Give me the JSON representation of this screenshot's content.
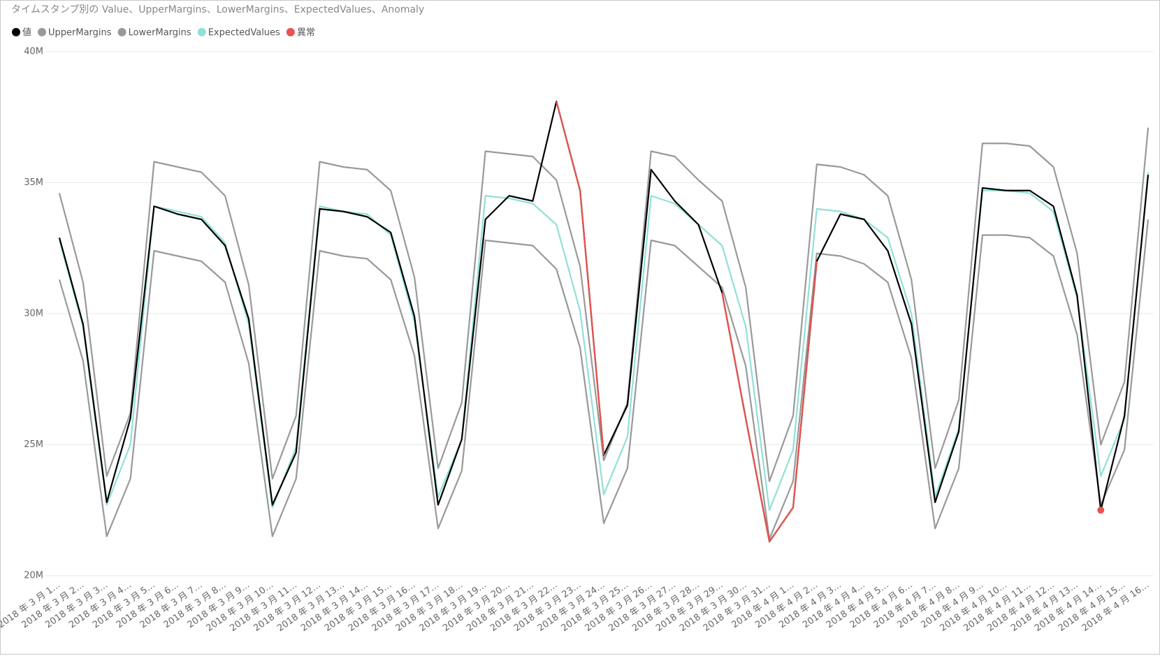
{
  "chart_data": {
    "type": "line",
    "title": "タイムスタンプ別の Value、UpperMargins、LowerMargins、ExpectedValues、Anomaly",
    "categories": [
      "2018 年 3 月 1…",
      "2018 年 3 月 2…",
      "2018 年 3 月 3…",
      "2018 年 3 月 4…",
      "2018 年 3 月 5…",
      "2018 年 3 月 6…",
      "2018 年 3 月 7…",
      "2018 年 3 月 8…",
      "2018 年 3 月 9…",
      "2018 年 3 月 10…",
      "2018 年 3 月 11…",
      "2018 年 3 月 12…",
      "2018 年 3 月 13…",
      "2018 年 3 月 14…",
      "2018 年 3 月 15…",
      "2018 年 3 月 16…",
      "2018 年 3 月 17…",
      "2018 年 3 月 18…",
      "2018 年 3 月 19…",
      "2018 年 3 月 20…",
      "2018 年 3 月 21…",
      "2018 年 3 月 22…",
      "2018 年 3 月 23…",
      "2018 年 3 月 24…",
      "2018 年 3 月 25…",
      "2018 年 3 月 26…",
      "2018 年 3 月 27…",
      "2018 年 3 月 28…",
      "2018 年 3 月 29…",
      "2018 年 3 月 30…",
      "2018 年 3 月 31…",
      "2018 年 4 月 1…",
      "2018 年 4 月 2…",
      "2018 年 4 月 3…",
      "2018 年 4 月 4…",
      "2018 年 4 月 5…",
      "2018 年 4 月 6…",
      "2018 年 4 月 7…",
      "2018 年 4 月 8…",
      "2018 年 4 月 9…",
      "2018 年 4 月 10…",
      "2018 年 4 月 11…",
      "2018 年 4 月 12…",
      "2018 年 4 月 13…",
      "2018 年 4 月 14…",
      "2018 年 4 月 15…",
      "2018 年 4 月 16…"
    ],
    "series": [
      {
        "name": "値",
        "color": "#000000",
        "values": [
          32.9,
          29.6,
          22.8,
          26.0,
          34.1,
          33.8,
          33.6,
          32.6,
          29.8,
          22.7,
          24.7,
          34.0,
          33.9,
          33.7,
          33.1,
          29.9,
          22.7,
          25.2,
          33.6,
          34.5,
          34.3,
          38.1,
          34.7,
          24.6,
          26.5,
          35.5,
          34.3,
          33.4,
          30.8,
          26.0,
          21.3,
          22.6,
          32.0,
          33.8,
          33.6,
          32.4,
          29.6,
          22.8,
          25.5,
          34.8,
          34.7,
          34.7,
          34.1,
          30.7,
          22.5,
          26.1,
          35.3
        ]
      },
      {
        "name": "UpperMargins",
        "color": "#999999",
        "values": [
          34.6,
          31.2,
          23.8,
          26.2,
          35.8,
          35.6,
          35.4,
          34.5,
          31.1,
          23.7,
          26.1,
          35.8,
          35.6,
          35.5,
          34.7,
          31.4,
          24.1,
          26.6,
          36.2,
          36.1,
          36.0,
          35.1,
          31.8,
          24.4,
          26.6,
          36.2,
          36.0,
          35.1,
          34.3,
          31.0,
          23.6,
          26.1,
          35.7,
          35.6,
          35.3,
          34.5,
          31.3,
          24.1,
          26.7,
          36.5,
          36.5,
          36.4,
          35.6,
          32.3,
          25.0,
          27.4,
          37.1
        ]
      },
      {
        "name": "LowerMargins",
        "color": "#999999",
        "values": [
          31.3,
          28.2,
          21.5,
          23.7,
          32.4,
          32.2,
          32.0,
          31.2,
          28.1,
          21.5,
          23.7,
          32.4,
          32.2,
          32.1,
          31.3,
          28.4,
          21.8,
          24.0,
          32.8,
          32.7,
          32.6,
          31.7,
          28.7,
          22.0,
          24.1,
          32.8,
          32.6,
          31.8,
          31.0,
          28.0,
          21.4,
          23.6,
          32.3,
          32.2,
          31.9,
          31.2,
          28.3,
          21.8,
          24.1,
          33.0,
          33.0,
          32.9,
          32.2,
          29.2,
          22.7,
          24.8,
          33.6
        ]
      },
      {
        "name": "ExpectedValues",
        "color": "#91e0d7",
        "values": [
          32.8,
          29.5,
          22.7,
          25.0,
          34.1,
          33.9,
          33.7,
          32.7,
          29.6,
          22.6,
          24.9,
          34.1,
          33.9,
          33.8,
          33.0,
          29.7,
          23.0,
          25.2,
          34.5,
          34.4,
          34.2,
          33.4,
          30.1,
          23.1,
          25.3,
          34.5,
          34.2,
          33.4,
          32.6,
          29.5,
          22.5,
          24.8,
          34.0,
          33.9,
          33.6,
          32.9,
          30.0,
          23.0,
          25.6,
          34.7,
          34.7,
          34.6,
          33.9,
          30.6,
          23.8,
          26.0,
          35.4
        ]
      },
      {
        "name": "異常",
        "color": "#e8534d",
        "values": [
          null,
          null,
          null,
          null,
          null,
          null,
          null,
          null,
          null,
          null,
          null,
          null,
          null,
          null,
          null,
          null,
          null,
          null,
          null,
          null,
          null,
          38.1,
          34.7,
          24.6,
          null,
          null,
          null,
          null,
          30.8,
          26.0,
          21.3,
          22.6,
          32.0,
          null,
          null,
          null,
          null,
          null,
          null,
          null,
          null,
          null,
          null,
          null,
          22.5,
          null,
          null
        ]
      }
    ],
    "ylim": [
      20,
      40
    ],
    "yticks": [
      {
        "value": 20,
        "label": "20M"
      },
      {
        "value": 25,
        "label": "25M"
      },
      {
        "value": 30,
        "label": "30M"
      },
      {
        "value": 35,
        "label": "35M"
      },
      {
        "value": 40,
        "label": "40M"
      }
    ],
    "grid": true
  }
}
